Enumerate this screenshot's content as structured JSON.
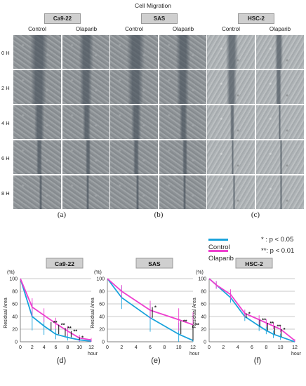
{
  "figure": {
    "title": "Cell Migration",
    "cell_lines": [
      "Ca9-22",
      "SAS",
      "HSC-2"
    ],
    "conditions": [
      "Control",
      "Olaparib"
    ],
    "timepoints": [
      "0 H",
      "2 H",
      "4 H",
      "6 H",
      "8 H"
    ],
    "panel_letters_top": [
      "(a)",
      "(b)",
      "(c)"
    ],
    "panel_letters_bottom": [
      "(d)",
      "(e)",
      "(f)"
    ]
  },
  "legend": {
    "items": [
      {
        "label": "Control",
        "color": "#1aa3dc"
      },
      {
        "label": "Olaparib",
        "color": "#ee3fcf"
      }
    ],
    "sig1_marker": "* ",
    "sig1_text": ": p < 0.05",
    "sig2_marker": "**",
    "sig2_text": ": p < 0.01"
  },
  "chart_data": [
    {
      "type": "line",
      "title": "Ca9-22",
      "xlabel": "hour",
      "ylabel": "Residual Area",
      "yunit": "(%)",
      "xlim": [
        0,
        12
      ],
      "ylim": [
        0,
        100
      ],
      "xticks": [
        0,
        2,
        4,
        6,
        8,
        10,
        12
      ],
      "yticks": [
        0,
        20,
        40,
        60,
        80,
        100
      ],
      "series": [
        {
          "name": "Control",
          "color": "#1aa3dc",
          "x": [
            0,
            2,
            4,
            6,
            8,
            10,
            12
          ],
          "y": [
            100,
            40,
            25,
            12,
            7,
            3,
            1
          ],
          "err": [
            0,
            22,
            14,
            8,
            5,
            3,
            1
          ]
        },
        {
          "name": "Olaparib",
          "color": "#ee3fcf",
          "x": [
            0,
            2,
            4,
            6,
            8,
            10,
            12
          ],
          "y": [
            100,
            55,
            42,
            29,
            17,
            6,
            3
          ],
          "err": [
            0,
            14,
            11,
            9,
            8,
            5,
            3
          ]
        }
      ],
      "annotations": [
        {
          "x": 5.2,
          "y1": 31,
          "y2": 18,
          "text": "**"
        },
        {
          "x": 6.5,
          "y1": 27,
          "y2": 12,
          "text": "**"
        },
        {
          "x": 7.6,
          "y1": 22,
          "y2": 9,
          "text": "**"
        },
        {
          "x": 8.6,
          "y1": 17,
          "y2": 7,
          "text": "**"
        },
        {
          "x": 10.0,
          "y1": 7,
          "y2": 3,
          "text": "*"
        }
      ]
    },
    {
      "type": "line",
      "title": "SAS",
      "xlabel": "hour",
      "ylabel": "Residual Area",
      "yunit": "(%)",
      "xlim": [
        0,
        12
      ],
      "ylim": [
        0,
        100
      ],
      "xticks": [
        0,
        2,
        4,
        6,
        8,
        10,
        12
      ],
      "yticks": [
        0,
        20,
        40,
        60,
        80,
        100
      ],
      "series": [
        {
          "name": "Control",
          "color": "#1aa3dc",
          "x": [
            0,
            2,
            6,
            10,
            12
          ],
          "y": [
            100,
            70,
            38,
            12,
            2
          ],
          "err": [
            0,
            18,
            22,
            18,
            4
          ]
        },
        {
          "name": "Olaparib",
          "color": "#ee3fcf",
          "x": [
            0,
            2,
            6,
            10,
            12
          ],
          "y": [
            100,
            80,
            50,
            35,
            27
          ],
          "err": [
            0,
            10,
            15,
            18,
            20
          ]
        }
      ],
      "annotations": [
        {
          "x": 6.3,
          "y1": 55,
          "y2": 38,
          "text": "*"
        },
        {
          "x": 10.3,
          "y1": 33,
          "y2": 12,
          "text": "**"
        },
        {
          "x": 12.0,
          "y1": 27,
          "y2": 2,
          "text": "**"
        }
      ]
    },
    {
      "type": "line",
      "title": "HSC-2",
      "xlabel": "hour",
      "ylabel": "Residual Area",
      "yunit": "(%)",
      "xlim": [
        0,
        12
      ],
      "ylim": [
        0,
        100
      ],
      "xticks": [
        0,
        2,
        4,
        6,
        8,
        10,
        12
      ],
      "yticks": [
        0,
        20,
        40,
        60,
        80,
        100
      ],
      "series": [
        {
          "name": "Control",
          "color": "#1aa3dc",
          "x": [
            0,
            1,
            3,
            5,
            7,
            8,
            9,
            10,
            12
          ],
          "y": [
            100,
            90,
            70,
            40,
            25,
            18,
            12,
            8,
            0
          ],
          "err": [
            0,
            6,
            8,
            7,
            8,
            6,
            6,
            5,
            1
          ]
        },
        {
          "name": "Olaparib",
          "color": "#ee3fcf",
          "x": [
            0,
            1,
            3,
            5,
            7,
            8,
            9,
            10,
            12
          ],
          "y": [
            100,
            90,
            75,
            45,
            35,
            30,
            25,
            20,
            2
          ],
          "err": [
            0,
            6,
            8,
            6,
            7,
            6,
            5,
            5,
            2
          ]
        }
      ],
      "annotations": [
        {
          "x": 5.2,
          "y1": 45,
          "y2": 38,
          "text": "*"
        },
        {
          "x": 7.1,
          "y1": 35,
          "y2": 24,
          "text": "**"
        },
        {
          "x": 8.2,
          "y1": 30,
          "y2": 18,
          "text": "**"
        },
        {
          "x": 9.2,
          "y1": 25,
          "y2": 12,
          "text": "**"
        },
        {
          "x": 10.1,
          "y1": 20,
          "y2": 8,
          "text": "*"
        }
      ]
    }
  ]
}
